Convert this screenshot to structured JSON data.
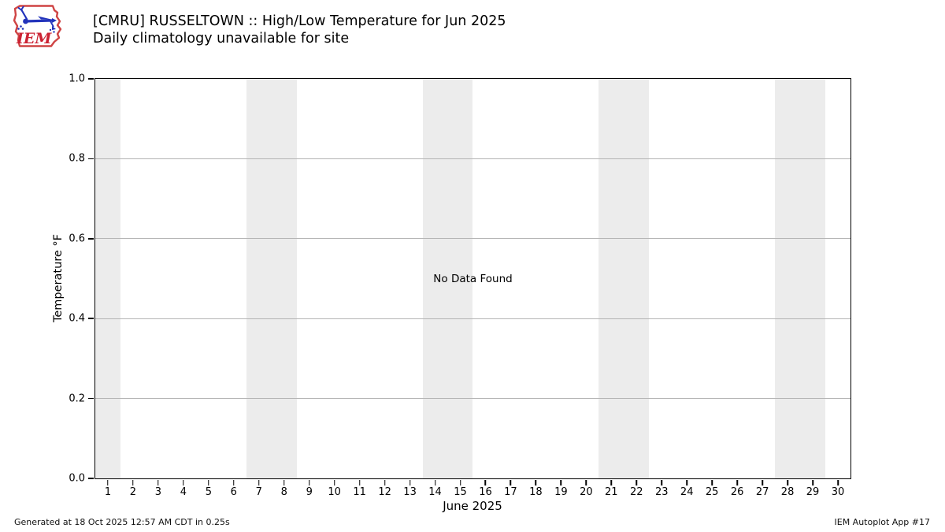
{
  "header": {
    "title": "[CMRU] RUSSELTOWN :: High/Low Temperature for Jun 2025",
    "subtitle": "Daily climatology unavailable for site"
  },
  "logo": {
    "text": "IEM"
  },
  "chart_data": {
    "type": "line",
    "title": "[CMRU] RUSSELTOWN :: High/Low Temperature for Jun 2025",
    "subtitle": "Daily climatology unavailable for site",
    "xlabel": "June 2025",
    "ylabel": "Temperature °F",
    "xlim": [
      0.5,
      30.5
    ],
    "ylim": [
      0.0,
      1.0
    ],
    "x_tick_labels": [
      "1",
      "2",
      "3",
      "4",
      "5",
      "6",
      "7",
      "8",
      "9",
      "10",
      "11",
      "12",
      "13",
      "14",
      "15",
      "16",
      "17",
      "18",
      "19",
      "20",
      "21",
      "22",
      "23",
      "24",
      "25",
      "26",
      "27",
      "28",
      "29",
      "30"
    ],
    "y_tick_labels": [
      "0.0",
      "0.2",
      "0.4",
      "0.6",
      "0.8",
      "1.0"
    ],
    "grid": true,
    "series": [],
    "no_data_label": "No Data Found",
    "weekend_shading_days": [
      [
        0.5,
        1.5
      ],
      [
        6.5,
        8.5
      ],
      [
        13.5,
        15.5
      ],
      [
        20.5,
        22.5
      ],
      [
        27.5,
        29.5
      ]
    ],
    "colors": {
      "band": "#ececec",
      "grid": "#b4b4b4",
      "spine": "#000000",
      "logo_red": "#cf4444",
      "logo_blue": "#2233bb",
      "logo_text_red": "#cc2233"
    }
  },
  "footer": {
    "generated": "Generated at 18 Oct 2025 12:57 AM CDT in 0.25s",
    "app": "IEM Autoplot App #17"
  }
}
